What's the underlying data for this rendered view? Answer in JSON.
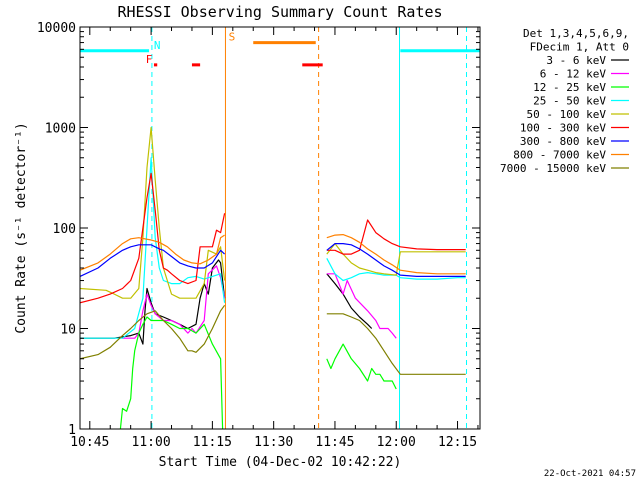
{
  "chart_data": {
    "type": "line",
    "title": "RHESSI Observing Summary Count Rates",
    "xlabel": "Start Time (04-Dec-02 10:42:22)",
    "ylabel": "Count Rate (s⁻¹ detector⁻¹)",
    "yscale": "log",
    "ylim": [
      1,
      10000
    ],
    "xlim_minutes": [
      -2.4,
      95.5
    ],
    "x_ticks": [
      {
        "label": "10:45",
        "minute": 0
      },
      {
        "label": "11:00",
        "minute": 15
      },
      {
        "label": "11:15",
        "minute": 30
      },
      {
        "label": "11:30",
        "minute": 45
      },
      {
        "label": "11:45",
        "minute": 60
      },
      {
        "label": "12:00",
        "minute": 75
      },
      {
        "label": "12:15",
        "minute": 90
      }
    ],
    "y_ticks": [
      {
        "label": "1",
        "value": 1
      },
      {
        "label": "10",
        "value": 10
      },
      {
        "label": "100",
        "value": 100
      },
      {
        "label": "1000",
        "value": 1000
      },
      {
        "label": "10000",
        "value": 10000
      }
    ],
    "legend_header": [
      "Det 1,3,4,5,6,9,",
      "FDecim 1, Att 0"
    ],
    "legend_position": "right",
    "flags": [
      {
        "label": "N",
        "color": "#00ffff",
        "letter_minute": 16.5,
        "segments": [
          [
            -2.4,
            14.5
          ],
          [
            76,
            95.5
          ]
        ],
        "value": 5800
      },
      {
        "label": "F",
        "color": "#ff0000",
        "letter_minute": 14.5,
        "segments": [
          [
            15.7,
            16.5
          ],
          [
            25,
            27
          ],
          [
            52,
            57
          ]
        ],
        "value": 4200
      },
      {
        "label": "S",
        "color": "#ff8000",
        "letter_minute": 34.8,
        "segments": [
          [
            40,
            55.3
          ]
        ],
        "value": 7000
      }
    ],
    "vlines": [
      {
        "minute": -2.4,
        "color": "#00ffff",
        "style": "solid"
      },
      {
        "minute": 15.2,
        "color": "#00ffff",
        "style": "dashed"
      },
      {
        "minute": 33.2,
        "color": "#ff8000",
        "style": "solid"
      },
      {
        "minute": 56.0,
        "color": "#ff8000",
        "style": "dashed"
      },
      {
        "minute": 75.8,
        "color": "#00ffff",
        "style": "solid"
      },
      {
        "minute": 92.2,
        "color": "#00ffff",
        "style": "dashed"
      }
    ],
    "series": [
      {
        "name": "3 - 6 keV",
        "color": "#000000",
        "points": [
          [
            -2.4,
            8
          ],
          [
            6,
            8
          ],
          [
            10,
            8.5
          ],
          [
            12,
            9
          ],
          [
            13,
            7
          ],
          [
            13.5,
            15
          ],
          [
            14,
            25
          ],
          [
            15,
            18
          ],
          [
            16,
            14
          ],
          [
            18,
            13
          ],
          [
            20,
            12
          ],
          [
            22,
            11
          ],
          [
            24,
            10
          ],
          [
            26,
            11
          ],
          [
            27,
            20
          ],
          [
            28,
            28
          ],
          [
            29,
            22
          ],
          [
            30,
            40
          ],
          [
            31.5,
            48
          ],
          [
            32,
            45
          ],
          [
            33,
            20
          ],
          [
            58,
            35
          ],
          [
            60,
            28
          ],
          [
            62,
            22
          ],
          [
            64,
            16
          ],
          [
            66,
            13
          ],
          [
            68,
            11
          ],
          [
            69,
            10
          ]
        ]
      },
      {
        "name": "6 - 12 keV",
        "color": "#ff00ff",
        "points": [
          [
            -2.4,
            8
          ],
          [
            8,
            8
          ],
          [
            11,
            8
          ],
          [
            12,
            9
          ],
          [
            13,
            15
          ],
          [
            14,
            22
          ],
          [
            15,
            17
          ],
          [
            16,
            14
          ],
          [
            18,
            12
          ],
          [
            20,
            12
          ],
          [
            22,
            11
          ],
          [
            24,
            9
          ],
          [
            25,
            10
          ],
          [
            26,
            9
          ],
          [
            28,
            12
          ],
          [
            29,
            35
          ],
          [
            31,
            42
          ],
          [
            32,
            32
          ],
          [
            33,
            20
          ],
          [
            58,
            35
          ],
          [
            60,
            35
          ],
          [
            62,
            22
          ],
          [
            63,
            30
          ],
          [
            65,
            20
          ],
          [
            68,
            15
          ],
          [
            70,
            12
          ],
          [
            71,
            10
          ],
          [
            73,
            10
          ],
          [
            74,
            9
          ],
          [
            75,
            8
          ]
        ]
      },
      {
        "name": "12 - 25 keV",
        "color": "#00ff00",
        "points": [
          [
            7.5,
            1
          ],
          [
            8,
            1.6
          ],
          [
            9,
            1.5
          ],
          [
            10,
            2
          ],
          [
            10.5,
            4
          ],
          [
            11,
            6
          ],
          [
            12,
            9
          ],
          [
            13,
            11
          ],
          [
            14,
            13
          ],
          [
            15,
            12
          ],
          [
            16,
            12
          ],
          [
            18,
            12
          ],
          [
            20,
            11
          ],
          [
            22,
            10
          ],
          [
            24,
            10
          ],
          [
            26,
            9
          ],
          [
            28,
            11
          ],
          [
            30,
            7
          ],
          [
            32,
            5
          ],
          [
            32.5,
            1
          ],
          [
            58,
            5
          ],
          [
            59,
            4
          ],
          [
            60,
            5
          ],
          [
            62,
            7
          ],
          [
            64,
            5
          ],
          [
            66,
            4
          ],
          [
            68,
            3
          ],
          [
            69,
            4
          ],
          [
            70,
            3.5
          ],
          [
            71,
            3.5
          ],
          [
            72,
            3
          ],
          [
            73,
            3
          ],
          [
            74,
            3
          ],
          [
            75,
            2.5
          ]
        ]
      },
      {
        "name": "25 - 50 keV",
        "color": "#00ffff",
        "points": [
          [
            -2.4,
            8
          ],
          [
            4,
            8
          ],
          [
            8,
            8
          ],
          [
            11,
            10
          ],
          [
            13,
            20
          ],
          [
            14,
            100
          ],
          [
            15,
            500
          ],
          [
            16,
            80
          ],
          [
            17,
            40
          ],
          [
            18,
            30
          ],
          [
            20,
            28
          ],
          [
            22,
            28
          ],
          [
            24,
            32
          ],
          [
            26,
            33
          ],
          [
            28,
            31
          ],
          [
            30,
            33
          ],
          [
            32,
            35
          ],
          [
            33,
            18
          ],
          [
            58,
            50
          ],
          [
            60,
            35
          ],
          [
            62,
            30
          ],
          [
            64,
            32
          ],
          [
            66,
            35
          ],
          [
            68,
            36
          ],
          [
            70,
            35
          ],
          [
            72,
            34
          ],
          [
            75,
            34
          ],
          [
            76,
            32
          ],
          [
            80,
            31
          ],
          [
            85,
            31
          ],
          [
            90,
            32
          ],
          [
            92,
            32
          ]
        ]
      },
      {
        "name": "50 - 100 keV",
        "color": "#c0c000",
        "points": [
          [
            -2.4,
            25
          ],
          [
            4,
            24
          ],
          [
            6,
            22
          ],
          [
            8,
            20
          ],
          [
            10,
            20
          ],
          [
            12,
            25
          ],
          [
            13,
            80
          ],
          [
            14,
            400
          ],
          [
            15,
            1000
          ],
          [
            16,
            300
          ],
          [
            17,
            100
          ],
          [
            18,
            40
          ],
          [
            20,
            22
          ],
          [
            22,
            20
          ],
          [
            24,
            20
          ],
          [
            26,
            20
          ],
          [
            28,
            28
          ],
          [
            29,
            60
          ],
          [
            31,
            55
          ],
          [
            32,
            65
          ],
          [
            33,
            30
          ],
          [
            58,
            55
          ],
          [
            60,
            70
          ],
          [
            62,
            55
          ],
          [
            64,
            45
          ],
          [
            66,
            40
          ],
          [
            68,
            38
          ],
          [
            70,
            36
          ],
          [
            72,
            35
          ],
          [
            75,
            34
          ],
          [
            76,
            58
          ],
          [
            80,
            58
          ],
          [
            90,
            58
          ],
          [
            92,
            58
          ]
        ]
      },
      {
        "name": "100 - 300 keV",
        "color": "#ff0000",
        "points": [
          [
            -2.4,
            18
          ],
          [
            2,
            20
          ],
          [
            5,
            22
          ],
          [
            8,
            25
          ],
          [
            10,
            30
          ],
          [
            12,
            50
          ],
          [
            13,
            100
          ],
          [
            14,
            200
          ],
          [
            15,
            350
          ],
          [
            16,
            150
          ],
          [
            17,
            60
          ],
          [
            18,
            40
          ],
          [
            19,
            38
          ],
          [
            20,
            35
          ],
          [
            22,
            30
          ],
          [
            24,
            28
          ],
          [
            26,
            30
          ],
          [
            27,
            65
          ],
          [
            30,
            65
          ],
          [
            31,
            95
          ],
          [
            32,
            90
          ],
          [
            33,
            140
          ],
          [
            58,
            60
          ],
          [
            60,
            60
          ],
          [
            62,
            55
          ],
          [
            64,
            55
          ],
          [
            66,
            60
          ],
          [
            68,
            120
          ],
          [
            70,
            90
          ],
          [
            72,
            78
          ],
          [
            74,
            70
          ],
          [
            76,
            65
          ],
          [
            80,
            62
          ],
          [
            85,
            61
          ],
          [
            90,
            61
          ],
          [
            92,
            61
          ]
        ]
      },
      {
        "name": "300 - 800 keV",
        "color": "#0000ff",
        "points": [
          [
            -2.4,
            33
          ],
          [
            2,
            40
          ],
          [
            5,
            50
          ],
          [
            8,
            60
          ],
          [
            10,
            65
          ],
          [
            12,
            68
          ],
          [
            15,
            68
          ],
          [
            17,
            62
          ],
          [
            18,
            60
          ],
          [
            20,
            52
          ],
          [
            22,
            45
          ],
          [
            24,
            42
          ],
          [
            26,
            40
          ],
          [
            28,
            40
          ],
          [
            30,
            45
          ],
          [
            32,
            60
          ],
          [
            33,
            55
          ],
          [
            58,
            60
          ],
          [
            60,
            70
          ],
          [
            62,
            70
          ],
          [
            64,
            68
          ],
          [
            66,
            62
          ],
          [
            68,
            55
          ],
          [
            70,
            48
          ],
          [
            72,
            42
          ],
          [
            74,
            38
          ],
          [
            76,
            34
          ],
          [
            80,
            33
          ],
          [
            85,
            33
          ],
          [
            90,
            33
          ],
          [
            92,
            33
          ]
        ]
      },
      {
        "name": "800 - 7000 keV",
        "color": "#ff8000",
        "points": [
          [
            -2.4,
            38
          ],
          [
            2,
            45
          ],
          [
            5,
            55
          ],
          [
            8,
            70
          ],
          [
            10,
            78
          ],
          [
            12,
            80
          ],
          [
            15,
            76
          ],
          [
            17,
            72
          ],
          [
            19,
            65
          ],
          [
            21,
            55
          ],
          [
            23,
            48
          ],
          [
            25,
            45
          ],
          [
            27,
            44
          ],
          [
            29,
            48
          ],
          [
            31,
            55
          ],
          [
            32,
            80
          ],
          [
            33,
            85
          ],
          [
            58,
            80
          ],
          [
            60,
            85
          ],
          [
            62,
            86
          ],
          [
            64,
            80
          ],
          [
            66,
            72
          ],
          [
            68,
            62
          ],
          [
            70,
            55
          ],
          [
            72,
            48
          ],
          [
            74,
            43
          ],
          [
            76,
            38
          ],
          [
            80,
            36
          ],
          [
            85,
            35
          ],
          [
            90,
            35
          ],
          [
            92,
            35
          ]
        ]
      },
      {
        "name": "7000 - 15000 keV",
        "color": "#808000",
        "points": [
          [
            -2.4,
            5
          ],
          [
            2,
            5.5
          ],
          [
            5,
            6.5
          ],
          [
            8,
            8.5
          ],
          [
            10,
            10
          ],
          [
            12,
            12
          ],
          [
            14,
            14
          ],
          [
            16,
            15
          ],
          [
            18,
            12
          ],
          [
            20,
            10
          ],
          [
            22,
            8
          ],
          [
            24,
            6
          ],
          [
            25,
            6
          ],
          [
            26,
            5.8
          ],
          [
            28,
            7
          ],
          [
            30,
            10
          ],
          [
            32,
            15
          ],
          [
            33,
            17
          ],
          [
            58,
            14
          ],
          [
            60,
            14
          ],
          [
            62,
            14
          ],
          [
            64,
            13
          ],
          [
            66,
            12
          ],
          [
            68,
            10
          ],
          [
            70,
            8
          ],
          [
            72,
            6
          ],
          [
            74,
            4.5
          ],
          [
            76,
            3.5
          ],
          [
            80,
            3.5
          ],
          [
            85,
            3.5
          ],
          [
            90,
            3.5
          ],
          [
            92,
            3.5
          ]
        ]
      }
    ]
  },
  "timestamp": "22-Oct-2021 04:57"
}
